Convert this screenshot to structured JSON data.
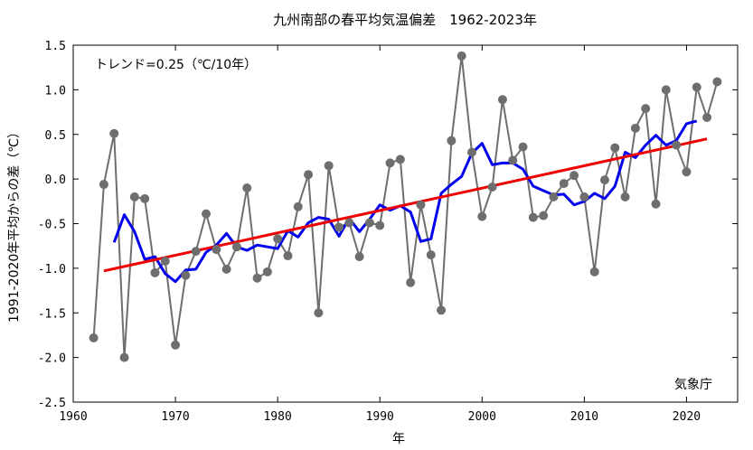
{
  "chart_data": {
    "type": "line",
    "title": "九州南部の春平均気温偏差　1962-2023年",
    "xlabel": "年",
    "ylabel": "1991-2020年平均からの差（℃）",
    "trend_label": "トレンド=0.25（℃/10年）",
    "source_label": "気象庁",
    "xlim": [
      1960,
      2025
    ],
    "ylim": [
      -2.5,
      1.5
    ],
    "xticks": [
      "1960",
      "1970",
      "1980",
      "1990",
      "2000",
      "2010",
      "2020"
    ],
    "yticks": [
      "-2.5",
      "-2.0",
      "-1.5",
      "-1.0",
      "-0.5",
      "0.0",
      "0.5",
      "1.0",
      "1.5"
    ],
    "x": [
      1962,
      1963,
      1964,
      1965,
      1966,
      1967,
      1968,
      1969,
      1970,
      1971,
      1972,
      1973,
      1974,
      1975,
      1976,
      1977,
      1978,
      1979,
      1980,
      1981,
      1982,
      1983,
      1984,
      1985,
      1986,
      1987,
      1988,
      1989,
      1990,
      1991,
      1992,
      1993,
      1994,
      1995,
      1996,
      1997,
      1998,
      1999,
      2000,
      2001,
      2002,
      2003,
      2004,
      2005,
      2006,
      2007,
      2008,
      2009,
      2010,
      2011,
      2012,
      2013,
      2014,
      2015,
      2016,
      2017,
      2018,
      2019,
      2020,
      2021,
      2022,
      2023
    ],
    "series": [
      {
        "kind": "annual",
        "color": "#6e6e6e",
        "values": [
          -1.78,
          -0.06,
          0.51,
          -2.0,
          -0.2,
          -0.22,
          -1.05,
          -0.92,
          -1.86,
          -1.08,
          -0.81,
          -0.39,
          -0.79,
          -1.01,
          -0.76,
          -0.1,
          -1.11,
          -1.04,
          -0.67,
          -0.86,
          -0.31,
          0.05,
          -1.5,
          0.15,
          -0.54,
          -0.49,
          -0.87,
          -0.49,
          -0.52,
          0.18,
          0.22,
          -1.16,
          -0.29,
          -0.85,
          -1.47,
          0.43,
          1.38,
          0.3,
          -0.42,
          -0.09,
          0.89,
          0.21,
          0.36,
          -0.43,
          -0.41,
          -0.2,
          -0.05,
          0.04,
          -0.2,
          -1.04,
          -0.01,
          0.35,
          -0.2,
          0.57,
          0.79,
          -0.28,
          1.0,
          0.38,
          0.08,
          1.03,
          0.69,
          1.09
        ]
      },
      {
        "kind": "five_year_running_mean",
        "color": "#0000ee",
        "values": [
          null,
          null,
          -0.71,
          -0.4,
          -0.59,
          -0.9,
          -0.87,
          -1.06,
          -1.15,
          -1.02,
          -1.01,
          -0.82,
          -0.74,
          -0.61,
          -0.76,
          -0.8,
          -0.74,
          -0.76,
          -0.78,
          -0.58,
          -0.65,
          -0.49,
          -0.43,
          -0.45,
          -0.64,
          -0.44,
          -0.59,
          -0.45,
          -0.29,
          -0.35,
          -0.3,
          -0.37,
          -0.7,
          -0.67,
          -0.16,
          -0.06,
          0.03,
          0.29,
          0.4,
          0.16,
          0.18,
          0.18,
          0.11,
          -0.08,
          -0.13,
          -0.18,
          -0.17,
          -0.29,
          -0.25,
          -0.16,
          -0.22,
          -0.08,
          0.3,
          0.24,
          0.38,
          0.49,
          0.38,
          0.43,
          0.62,
          0.65,
          null,
          null
        ]
      },
      {
        "kind": "trend",
        "color": "#ee0000",
        "x": [
          1963,
          2022
        ],
        "values": [
          -1.03,
          0.45
        ]
      }
    ],
    "grid": false,
    "legend": "none"
  }
}
